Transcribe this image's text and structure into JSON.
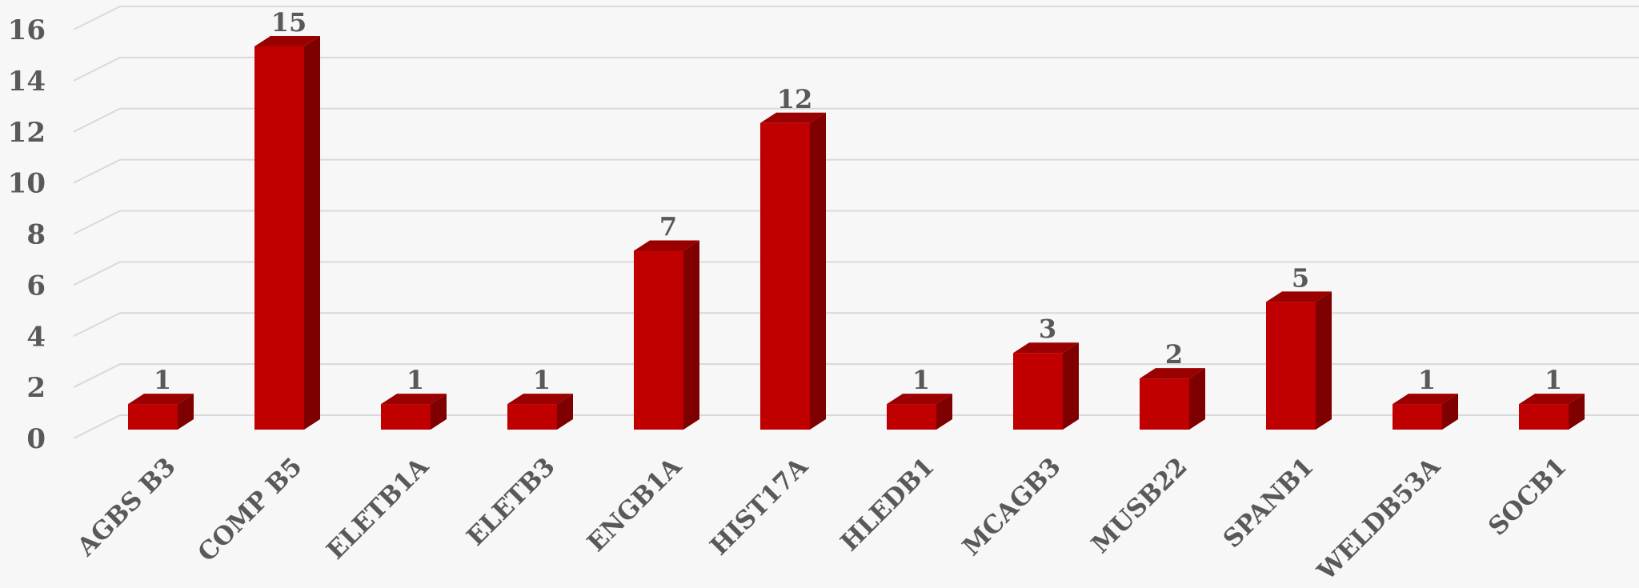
{
  "chart_data": {
    "type": "bar",
    "style": "3d-column",
    "title": "",
    "xlabel": "",
    "ylabel": "",
    "categories": [
      "AGBS B3",
      "COMP B5",
      "ELETB1A",
      "ELETB3",
      "ENGB1A",
      "HIST17A",
      "HLEDB1",
      "MCAGB3",
      "MUSB22",
      "SPANB1",
      "WELDB53A",
      "SOCB1"
    ],
    "values": [
      1,
      15,
      1,
      1,
      7,
      12,
      1,
      3,
      2,
      5,
      1,
      1
    ],
    "ylim": [
      0,
      16
    ],
    "yticks": [
      0,
      2,
      4,
      6,
      8,
      10,
      12,
      14,
      16
    ],
    "grid": true,
    "legend": "none",
    "colors": {
      "bar_front": "#c00000",
      "bar_side": "#7f0000",
      "bar_top": "#9a0000",
      "gridline": "#d9d9d9",
      "label": "#595959",
      "background": "#f7f7f7"
    }
  }
}
